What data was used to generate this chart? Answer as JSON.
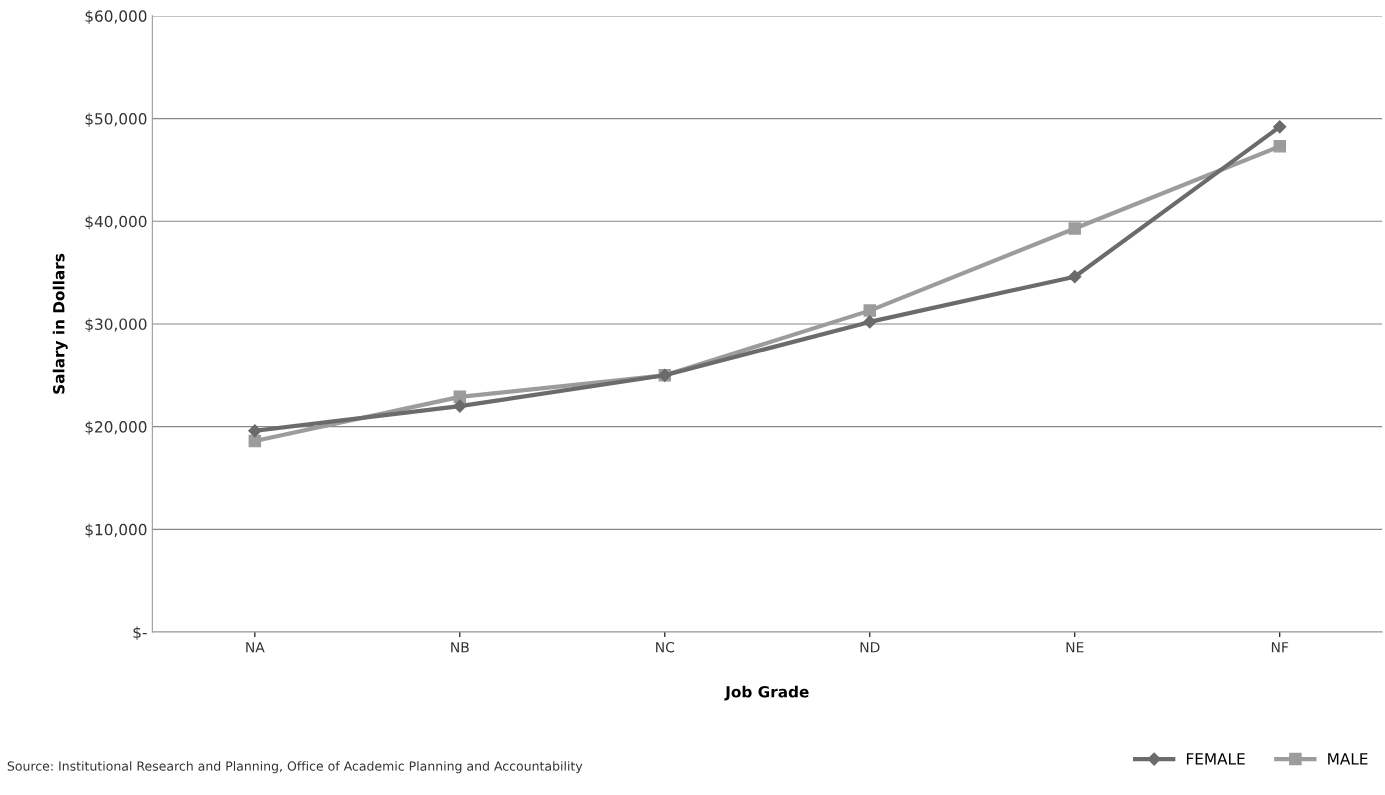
{
  "chart_data": {
    "type": "line",
    "xlabel": "Job Grade",
    "ylabel": "Salary in Dollars",
    "categories": [
      "NA",
      "NB",
      "NC",
      "ND",
      "NE",
      "NF"
    ],
    "series": [
      {
        "name": "FEMALE",
        "color": "#6b6b6b",
        "marker": "diamond",
        "values": [
          19600,
          22000,
          25000,
          30200,
          34600,
          49200
        ]
      },
      {
        "name": "MALE",
        "color": "#9c9c9c",
        "marker": "square",
        "values": [
          18600,
          22900,
          25000,
          31300,
          39300,
          47300
        ]
      }
    ],
    "ylim": [
      0,
      60000
    ],
    "yticks": [
      {
        "value": 0,
        "label": "$-"
      },
      {
        "value": 10000,
        "label": "$10,000"
      },
      {
        "value": 20000,
        "label": "$20,000"
      },
      {
        "value": 30000,
        "label": "$30,000"
      },
      {
        "value": 40000,
        "label": "$40,000"
      },
      {
        "value": 50000,
        "label": "$50,000"
      },
      {
        "value": 60000,
        "label": "$60,000"
      }
    ],
    "grid": "y",
    "legend": "bottom right",
    "line_style": "solid",
    "annotations": [
      "Source: Institutional Research and Planning, Office of Academic Planning and Accountability"
    ]
  }
}
